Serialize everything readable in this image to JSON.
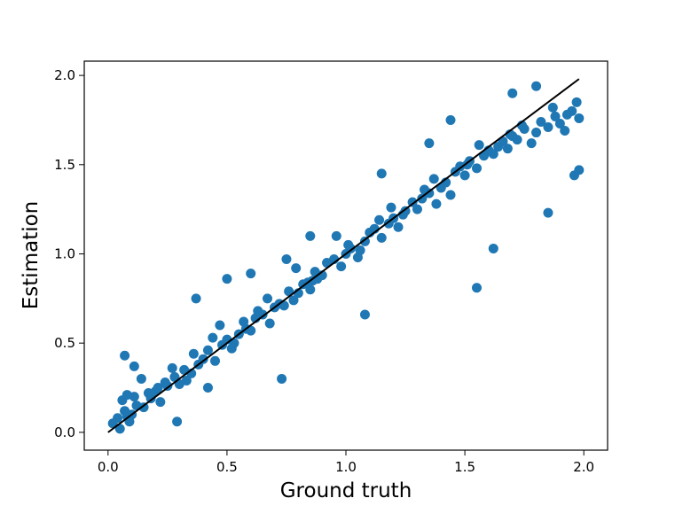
{
  "chart_data": {
    "type": "scatter",
    "title": "",
    "xlabel": "Ground truth",
    "ylabel": "Estimation",
    "xlim": [
      -0.1,
      2.1
    ],
    "ylim": [
      -0.1,
      2.08
    ],
    "xticks": [
      "0.0",
      "0.5",
      "1.0",
      "1.5",
      "2.0"
    ],
    "yticks": [
      "0.0",
      "0.5",
      "1.0",
      "1.5",
      "2.0"
    ],
    "grid": false,
    "legend": "none",
    "colors": {
      "points": "#1f77b4",
      "line": "#000000"
    },
    "series": [
      {
        "kind": "points",
        "x": [
          0.02,
          0.04,
          0.05,
          0.07,
          0.08,
          0.1,
          0.12,
          0.06,
          0.09,
          0.11,
          0.15,
          0.18,
          0.2,
          0.22,
          0.25,
          0.14,
          0.17,
          0.21,
          0.24,
          0.28,
          0.3,
          0.32,
          0.35,
          0.38,
          0.4,
          0.27,
          0.33,
          0.36,
          0.42,
          0.45,
          0.48,
          0.5,
          0.52,
          0.55,
          0.58,
          0.44,
          0.47,
          0.53,
          0.57,
          0.6,
          0.62,
          0.65,
          0.68,
          0.7,
          0.72,
          0.63,
          0.67,
          0.74,
          0.76,
          0.78,
          0.8,
          0.82,
          0.85,
          0.88,
          0.9,
          0.79,
          0.84,
          0.87,
          0.92,
          0.95,
          0.98,
          1.0,
          1.02,
          1.05,
          1.08,
          0.96,
          1.01,
          1.06,
          1.1,
          1.12,
          1.15,
          1.18,
          1.2,
          1.22,
          1.25,
          1.14,
          1.19,
          1.24,
          1.28,
          1.3,
          1.32,
          1.35,
          1.38,
          1.4,
          1.42,
          1.33,
          1.37,
          1.44,
          1.46,
          1.48,
          1.5,
          1.52,
          1.55,
          1.58,
          1.6,
          1.51,
          1.56,
          1.62,
          1.64,
          1.66,
          1.68,
          1.7,
          1.72,
          1.75,
          1.78,
          1.69,
          1.74,
          1.8,
          1.82,
          1.85,
          1.88,
          1.9,
          1.92,
          1.95,
          1.98,
          1.87,
          1.93,
          1.97,
          0.07,
          0.37,
          0.5,
          0.85,
          1.15,
          1.35,
          1.44,
          1.8,
          0.6,
          0.42,
          0.75,
          0.73,
          1.62,
          1.85,
          1.7,
          1.96,
          0.08,
          0.11,
          0.29,
          0.86,
          1.08,
          1.55,
          1.98
        ],
        "y": [
          0.05,
          0.08,
          0.02,
          0.12,
          0.09,
          0.1,
          0.15,
          0.18,
          0.06,
          0.2,
          0.14,
          0.19,
          0.23,
          0.17,
          0.26,
          0.3,
          0.22,
          0.25,
          0.28,
          0.31,
          0.27,
          0.35,
          0.33,
          0.38,
          0.41,
          0.36,
          0.29,
          0.44,
          0.46,
          0.4,
          0.49,
          0.52,
          0.47,
          0.55,
          0.58,
          0.53,
          0.6,
          0.5,
          0.62,
          0.57,
          0.64,
          0.66,
          0.61,
          0.7,
          0.72,
          0.68,
          0.75,
          0.71,
          0.79,
          0.74,
          0.78,
          0.83,
          0.8,
          0.86,
          0.88,
          0.92,
          0.84,
          0.9,
          0.95,
          0.97,
          0.93,
          1.0,
          1.03,
          0.98,
          1.07,
          1.1,
          1.05,
          1.02,
          1.12,
          1.14,
          1.09,
          1.17,
          1.2,
          1.15,
          1.24,
          1.19,
          1.26,
          1.22,
          1.29,
          1.25,
          1.31,
          1.34,
          1.28,
          1.37,
          1.4,
          1.36,
          1.42,
          1.33,
          1.46,
          1.49,
          1.44,
          1.52,
          1.48,
          1.55,
          1.58,
          1.5,
          1.61,
          1.56,
          1.6,
          1.63,
          1.59,
          1.66,
          1.64,
          1.7,
          1.62,
          1.67,
          1.72,
          1.68,
          1.74,
          1.71,
          1.77,
          1.73,
          1.69,
          1.8,
          1.76,
          1.82,
          1.78,
          1.85,
          0.43,
          0.75,
          0.86,
          1.1,
          1.45,
          1.62,
          1.75,
          1.94,
          0.89,
          0.25,
          0.97,
          0.3,
          1.03,
          1.23,
          1.9,
          1.44,
          0.21,
          0.37,
          0.06,
          0.85,
          0.66,
          0.81,
          1.47
        ]
      },
      {
        "kind": "line",
        "x": [
          0.0,
          1.98
        ],
        "y": [
          0.0,
          1.98
        ]
      }
    ]
  }
}
